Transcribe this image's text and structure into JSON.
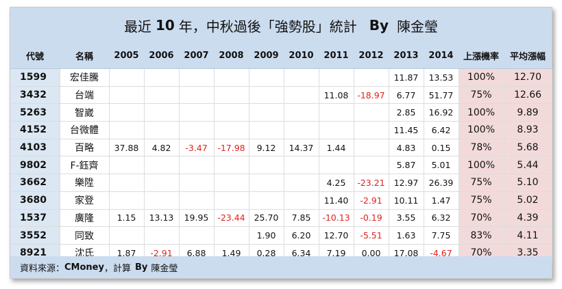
{
  "title": {
    "prefix": "最近",
    "years": "10",
    "suffix": "年，中秋過後「強勢股」統計",
    "by": "By",
    "author": "陳金瑩"
  },
  "headers": {
    "code": "代號",
    "name": "名稱",
    "years": [
      "2005",
      "2006",
      "2007",
      "2008",
      "2009",
      "2010",
      "2011",
      "2012",
      "2013",
      "2014"
    ],
    "rate": "上漲機率",
    "avg": "平均漲幅"
  },
  "rows": [
    {
      "code": "1599",
      "name": "宏佳騰",
      "values": [
        "",
        "",
        "",
        "",
        "",
        "",
        "",
        "",
        "11.87",
        "13.53"
      ],
      "rate": "100%",
      "avg": "12.70"
    },
    {
      "code": "3432",
      "name": "台端",
      "values": [
        "",
        "",
        "",
        "",
        "",
        "",
        "11.08",
        "-18.97",
        "6.77",
        "51.77"
      ],
      "rate": "75%",
      "avg": "12.66"
    },
    {
      "code": "5263",
      "name": "智崴",
      "values": [
        "",
        "",
        "",
        "",
        "",
        "",
        "",
        "",
        "2.85",
        "16.92"
      ],
      "rate": "100%",
      "avg": "9.89"
    },
    {
      "code": "4152",
      "name": "台微體",
      "values": [
        "",
        "",
        "",
        "",
        "",
        "",
        "",
        "",
        "11.45",
        "6.42"
      ],
      "rate": "100%",
      "avg": "8.93"
    },
    {
      "code": "4103",
      "name": "百略",
      "values": [
        "37.88",
        "4.82",
        "-3.47",
        "-17.98",
        "9.12",
        "14.37",
        "1.44",
        "",
        "4.83",
        "0.15"
      ],
      "rate": "78%",
      "avg": "5.68"
    },
    {
      "code": "9802",
      "name": "F-鈺齊",
      "values": [
        "",
        "",
        "",
        "",
        "",
        "",
        "",
        "",
        "5.87",
        "5.01"
      ],
      "rate": "100%",
      "avg": "5.44"
    },
    {
      "code": "3662",
      "name": "樂陞",
      "values": [
        "",
        "",
        "",
        "",
        "",
        "",
        "4.25",
        "-23.21",
        "12.97",
        "26.39"
      ],
      "rate": "75%",
      "avg": "5.10"
    },
    {
      "code": "3680",
      "name": "家登",
      "values": [
        "",
        "",
        "",
        "",
        "",
        "",
        "11.40",
        "-2.91",
        "10.11",
        "1.47"
      ],
      "rate": "75%",
      "avg": "5.02"
    },
    {
      "code": "1537",
      "name": "廣隆",
      "values": [
        "1.15",
        "13.13",
        "19.95",
        "-23.44",
        "25.70",
        "7.85",
        "-10.13",
        "-0.19",
        "3.55",
        "6.32"
      ],
      "rate": "70%",
      "avg": "4.39"
    },
    {
      "code": "3552",
      "name": "同致",
      "values": [
        "",
        "",
        "",
        "",
        "1.90",
        "6.20",
        "12.70",
        "-5.51",
        "1.63",
        "7.75"
      ],
      "rate": "83%",
      "avg": "4.11"
    },
    {
      "code": "8921",
      "name": "沈氏",
      "values": [
        "1.87",
        "-2.91",
        "6.88",
        "1.49",
        "0.28",
        "6.34",
        "7.19",
        "0.00",
        "17.08",
        "-4.67"
      ],
      "rate": "70%",
      "avg": "3.35"
    }
  ],
  "footer": {
    "label": "資料來源：",
    "source": "CMoney",
    "calc": "，計算",
    "by": "By",
    "author": "陳金瑩"
  },
  "colors": {
    "header_bg": "#ccdcef",
    "code_bg": "#dbe7f3",
    "highlight_bg": "#f3dada",
    "negative": "#e0211c"
  }
}
